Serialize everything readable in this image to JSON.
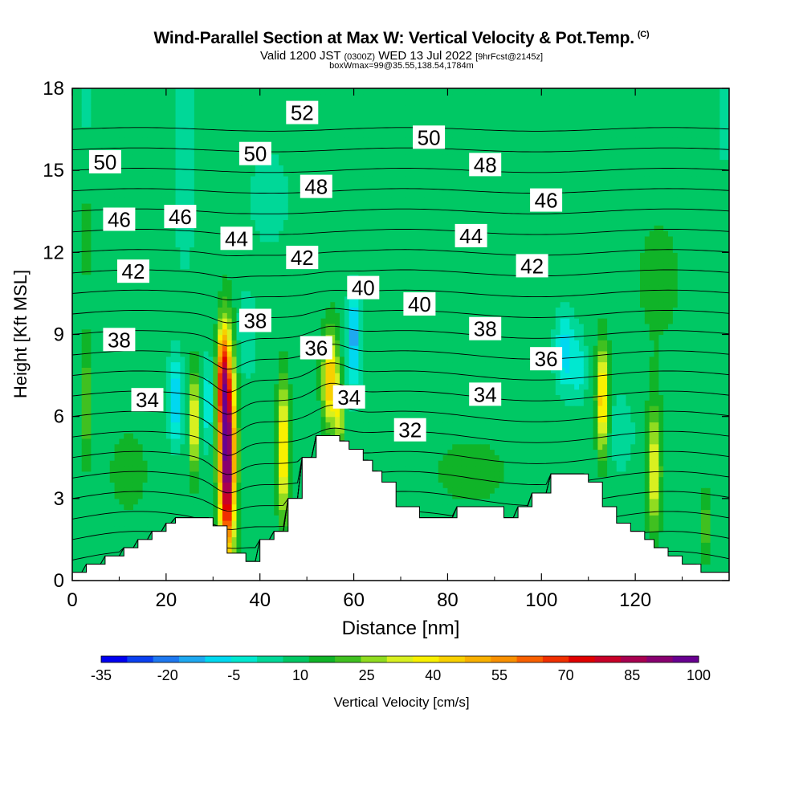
{
  "chart_data": {
    "type": "heatmap",
    "title": "Wind-Parallel Section at Max W: Vertical Velocity & Pot.Temp.",
    "title_mark": "(C)",
    "subtitle_valid": "Valid 1200 JST",
    "subtitle_utc": "(0300Z)",
    "subtitle_date": "WED 13 Jul 2022",
    "subtitle_fcst": "[9hrFcst@2145z]",
    "subtitle_box": "boxWmax=99@35.55,138.54,1784m",
    "xlabel": "Distance [nm]",
    "ylabel": "Height [Kft MSL]",
    "xlim": [
      0,
      140
    ],
    "ylim": [
      0,
      18
    ],
    "xticks": [
      "0",
      "20",
      "40",
      "60",
      "80",
      "100",
      "120"
    ],
    "yticks": [
      "0",
      "3",
      "6",
      "9",
      "12",
      "15",
      "18"
    ],
    "colorbar": {
      "label": "Vertical Velocity [cm/s]",
      "tick_labels": [
        "-35",
        "-20",
        "-5",
        "10",
        "25",
        "40",
        "55",
        "70",
        "85",
        "100"
      ],
      "colors": [
        "#0000f0",
        "#0a40f0",
        "#1e78f0",
        "#1ea8f0",
        "#00d8f0",
        "#00e8d0",
        "#00d898",
        "#00c864",
        "#10b428",
        "#40c020",
        "#90dc20",
        "#d8f020",
        "#f8f000",
        "#f8d000",
        "#f8b000",
        "#f89000",
        "#f86000",
        "#f03000",
        "#e00000",
        "#c80028",
        "#a80050",
        "#880070",
        "#680090"
      ]
    },
    "velocity_levels_cm_s": [
      -35,
      -30,
      -25,
      -20,
      -15,
      -10,
      -5,
      0,
      5,
      10,
      15,
      20,
      25,
      30,
      35,
      40,
      45,
      50,
      55,
      60,
      65,
      70,
      75,
      80,
      85,
      90,
      95,
      100
    ],
    "theta_labels": [
      {
        "value": "52",
        "x": 49,
        "y": 17.1
      },
      {
        "value": "50",
        "x": 76,
        "y": 16.2
      },
      {
        "value": "50",
        "x": 7,
        "y": 15.3
      },
      {
        "value": "50",
        "x": 39,
        "y": 15.6
      },
      {
        "value": "48",
        "x": 88,
        "y": 15.2
      },
      {
        "value": "48",
        "x": 52,
        "y": 14.4
      },
      {
        "value": "46",
        "x": 101,
        "y": 13.9
      },
      {
        "value": "46",
        "x": 10,
        "y": 13.2
      },
      {
        "value": "46",
        "x": 23,
        "y": 13.3
      },
      {
        "value": "44",
        "x": 35,
        "y": 12.5
      },
      {
        "value": "44",
        "x": 85,
        "y": 12.6
      },
      {
        "value": "42",
        "x": 49,
        "y": 11.8
      },
      {
        "value": "42",
        "x": 98,
        "y": 11.5
      },
      {
        "value": "42",
        "x": 13,
        "y": 11.3
      },
      {
        "value": "40",
        "x": 62,
        "y": 10.7
      },
      {
        "value": "40",
        "x": 74,
        "y": 10.1
      },
      {
        "value": "38",
        "x": 39,
        "y": 9.5
      },
      {
        "value": "38",
        "x": 88,
        "y": 9.2
      },
      {
        "value": "38",
        "x": 10,
        "y": 8.8
      },
      {
        "value": "36",
        "x": 52,
        "y": 8.5
      },
      {
        "value": "36",
        "x": 101,
        "y": 8.1
      },
      {
        "value": "34",
        "x": 16,
        "y": 6.6
      },
      {
        "value": "34",
        "x": 59,
        "y": 6.7
      },
      {
        "value": "34",
        "x": 88,
        "y": 6.8
      },
      {
        "value": "32",
        "x": 72,
        "y": 5.5
      }
    ],
    "terrain_kft": [
      [
        0,
        0.3
      ],
      [
        2,
        0.3
      ],
      [
        3,
        0.6
      ],
      [
        6,
        0.6
      ],
      [
        7,
        0.9
      ],
      [
        10,
        0.9
      ],
      [
        11,
        1.2
      ],
      [
        13,
        1.2
      ],
      [
        14,
        1.5
      ],
      [
        16,
        1.5
      ],
      [
        17,
        1.8
      ],
      [
        19,
        1.8
      ],
      [
        20,
        2.1
      ],
      [
        21,
        2.1
      ],
      [
        22,
        2.3
      ],
      [
        29,
        2.3
      ],
      [
        30,
        2.0
      ],
      [
        32,
        2.0
      ],
      [
        33,
        1.0
      ],
      [
        36,
        1.0
      ],
      [
        37,
        0.7
      ],
      [
        39,
        0.7
      ],
      [
        40,
        1.5
      ],
      [
        42,
        1.5
      ],
      [
        43,
        1.8
      ],
      [
        45,
        1.8
      ],
      [
        46,
        3.0
      ],
      [
        48,
        3.0
      ],
      [
        49,
        4.5
      ],
      [
        51,
        4.5
      ],
      [
        52,
        5.3
      ],
      [
        56,
        5.3
      ],
      [
        57,
        5.1
      ],
      [
        58,
        5.1
      ],
      [
        59,
        4.8
      ],
      [
        61,
        4.8
      ],
      [
        62,
        4.4
      ],
      [
        63,
        4.4
      ],
      [
        64,
        4.0
      ],
      [
        65,
        4.0
      ],
      [
        66,
        3.6
      ],
      [
        68,
        3.6
      ],
      [
        69,
        2.7
      ],
      [
        73,
        2.7
      ],
      [
        74,
        2.3
      ],
      [
        81,
        2.3
      ],
      [
        82,
        2.7
      ],
      [
        91,
        2.7
      ],
      [
        92,
        2.3
      ],
      [
        94,
        2.3
      ],
      [
        95,
        2.7
      ],
      [
        97,
        2.7
      ],
      [
        98,
        3.2
      ],
      [
        101,
        3.2
      ],
      [
        102,
        3.9
      ],
      [
        109,
        3.9
      ],
      [
        110,
        3.6
      ],
      [
        112,
        3.6
      ],
      [
        113,
        2.7
      ],
      [
        115,
        2.7
      ],
      [
        116,
        2.1
      ],
      [
        118,
        2.1
      ],
      [
        119,
        1.8
      ],
      [
        121,
        1.8
      ],
      [
        122,
        1.5
      ],
      [
        123,
        1.5
      ],
      [
        124,
        1.2
      ],
      [
        126,
        1.2
      ],
      [
        127,
        0.9
      ],
      [
        129,
        0.9
      ],
      [
        130,
        0.6
      ],
      [
        133,
        0.6
      ],
      [
        134,
        0.3
      ],
      [
        136,
        0.3
      ],
      [
        137,
        0.3
      ],
      [
        140,
        0.3
      ]
    ],
    "w_features": [
      {
        "x": 33,
        "y": 4.6,
        "sx": 1.2,
        "sy": 2.6,
        "w": 95
      },
      {
        "x": 32,
        "y": 7.5,
        "sx": 0.8,
        "sy": 1.2,
        "w": 45
      },
      {
        "x": 26,
        "y": 5.8,
        "sx": 0.6,
        "sy": 1.3,
        "w": 38
      },
      {
        "x": 45,
        "y": 4.8,
        "sx": 0.9,
        "sy": 1.8,
        "w": 38
      },
      {
        "x": 55,
        "y": 7.3,
        "sx": 1.2,
        "sy": 1.2,
        "w": 42
      },
      {
        "x": 57,
        "y": 6.0,
        "sx": 0.6,
        "sy": 0.8,
        "w": 25
      },
      {
        "x": 113,
        "y": 6.6,
        "sx": 0.9,
        "sy": 1.4,
        "w": 40
      },
      {
        "x": 124,
        "y": 4.0,
        "sx": 1.0,
        "sy": 1.6,
        "w": 30
      },
      {
        "x": 3,
        "y": 6.5,
        "sx": 0.7,
        "sy": 1.5,
        "w": 18
      },
      {
        "x": 135,
        "y": 2.0,
        "sx": 0.8,
        "sy": 1.0,
        "w": 14
      },
      {
        "x": 22,
        "y": 6.6,
        "sx": 1.0,
        "sy": 1.0,
        "w": -22
      },
      {
        "x": 29,
        "y": 6.5,
        "sx": 0.7,
        "sy": 1.0,
        "w": -15
      },
      {
        "x": 60,
        "y": 9.0,
        "sx": 1.0,
        "sy": 1.3,
        "w": -25
      },
      {
        "x": 105,
        "y": 8.4,
        "sx": 1.3,
        "sy": 0.9,
        "w": -20
      },
      {
        "x": 108,
        "y": 7.8,
        "sx": 1.0,
        "sy": 0.8,
        "w": -12
      },
      {
        "x": 24,
        "y": 15.5,
        "sx": 1.5,
        "sy": 2.5,
        "w": -8
      },
      {
        "x": 37,
        "y": 9.0,
        "sx": 1.5,
        "sy": 1.0,
        "w": -8
      },
      {
        "x": 42,
        "y": 14.0,
        "sx": 3.0,
        "sy": 1.2,
        "w": -5
      },
      {
        "x": 117,
        "y": 5.5,
        "sx": 2.0,
        "sy": 1.0,
        "w": -6
      },
      {
        "x": 3,
        "y": 17.5,
        "sx": 1.0,
        "sy": 0.8,
        "w": -6
      },
      {
        "x": 139,
        "y": 17.0,
        "sx": 0.8,
        "sy": 1.0,
        "w": -8
      },
      {
        "x": 12,
        "y": 4.0,
        "sx": 4.0,
        "sy": 1.5,
        "w": 6
      },
      {
        "x": 85,
        "y": 4.0,
        "sx": 8.0,
        "sy": 1.2,
        "w": 6
      },
      {
        "x": 60,
        "y": 12.0,
        "sx": 5.0,
        "sy": 2.0,
        "w": 4
      },
      {
        "x": 125,
        "y": 11.0,
        "sx": 6.0,
        "sy": 3.0,
        "w": 5
      },
      {
        "x": 100,
        "y": 16.0,
        "sx": 8.0,
        "sy": 2.0,
        "w": 4
      },
      {
        "x": 3,
        "y": 12.5,
        "sx": 2.0,
        "sy": 2.0,
        "w": 5
      }
    ],
    "theta_contours_K": [
      30,
      31,
      32,
      33,
      34,
      35,
      36,
      37,
      38,
      39,
      40,
      41,
      42,
      43,
      44,
      45,
      46,
      47,
      48,
      49,
      50,
      51,
      52,
      53
    ]
  }
}
